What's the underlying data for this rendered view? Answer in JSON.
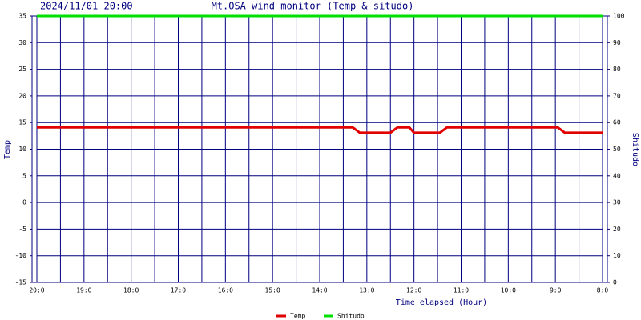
{
  "chart_data": {
    "type": "line",
    "date": "2024/11/01 20:00",
    "title": "Mt.OSA wind monitor (Temp & situdo)",
    "x_label": "Time elapsed (Hour)",
    "y_label": "Temp",
    "y2_label": "Shitudo",
    "xlim": [
      0,
      12
    ],
    "xticks": [
      {
        "value": 0,
        "label": "20:0"
      },
      {
        "value": 1,
        "label": "19:0"
      },
      {
        "value": 2,
        "label": "18:0"
      },
      {
        "value": 3,
        "label": "17:0"
      },
      {
        "value": 4,
        "label": "16:0"
      },
      {
        "value": 5,
        "label": "15:0"
      },
      {
        "value": 6,
        "label": "14:0"
      },
      {
        "value": 7,
        "label": "13:0"
      },
      {
        "value": 8,
        "label": "12:0"
      },
      {
        "value": 9,
        "label": "11:0"
      },
      {
        "value": 10,
        "label": "10:0"
      },
      {
        "value": 11,
        "label": "9:0"
      },
      {
        "value": 12,
        "label": "8:0"
      }
    ],
    "ylim": [
      -15,
      35
    ],
    "yticks": [
      -15,
      -10,
      -5,
      0,
      5,
      10,
      15,
      20,
      25,
      30,
      35
    ],
    "y2lim": [
      0,
      100
    ],
    "y2ticks": [
      0,
      10,
      20,
      30,
      40,
      50,
      60,
      70,
      80,
      90,
      100
    ],
    "grid": true,
    "series": [
      {
        "name": "Temp",
        "color": "#e00000",
        "x": [
          0,
          6.7,
          6.85,
          7.5,
          7.65,
          7.9,
          8.0,
          8.55,
          8.7,
          11.05,
          11.2,
          12
        ],
        "values": [
          14.1,
          14.1,
          13.1,
          13.1,
          14.1,
          14.1,
          13.1,
          13.1,
          14.1,
          14.1,
          13.1,
          13.1
        ]
      },
      {
        "name": "Shitudo",
        "color": "#00e000",
        "axis": "y2",
        "x": [
          0,
          12
        ],
        "values": [
          100,
          100
        ]
      }
    ]
  }
}
